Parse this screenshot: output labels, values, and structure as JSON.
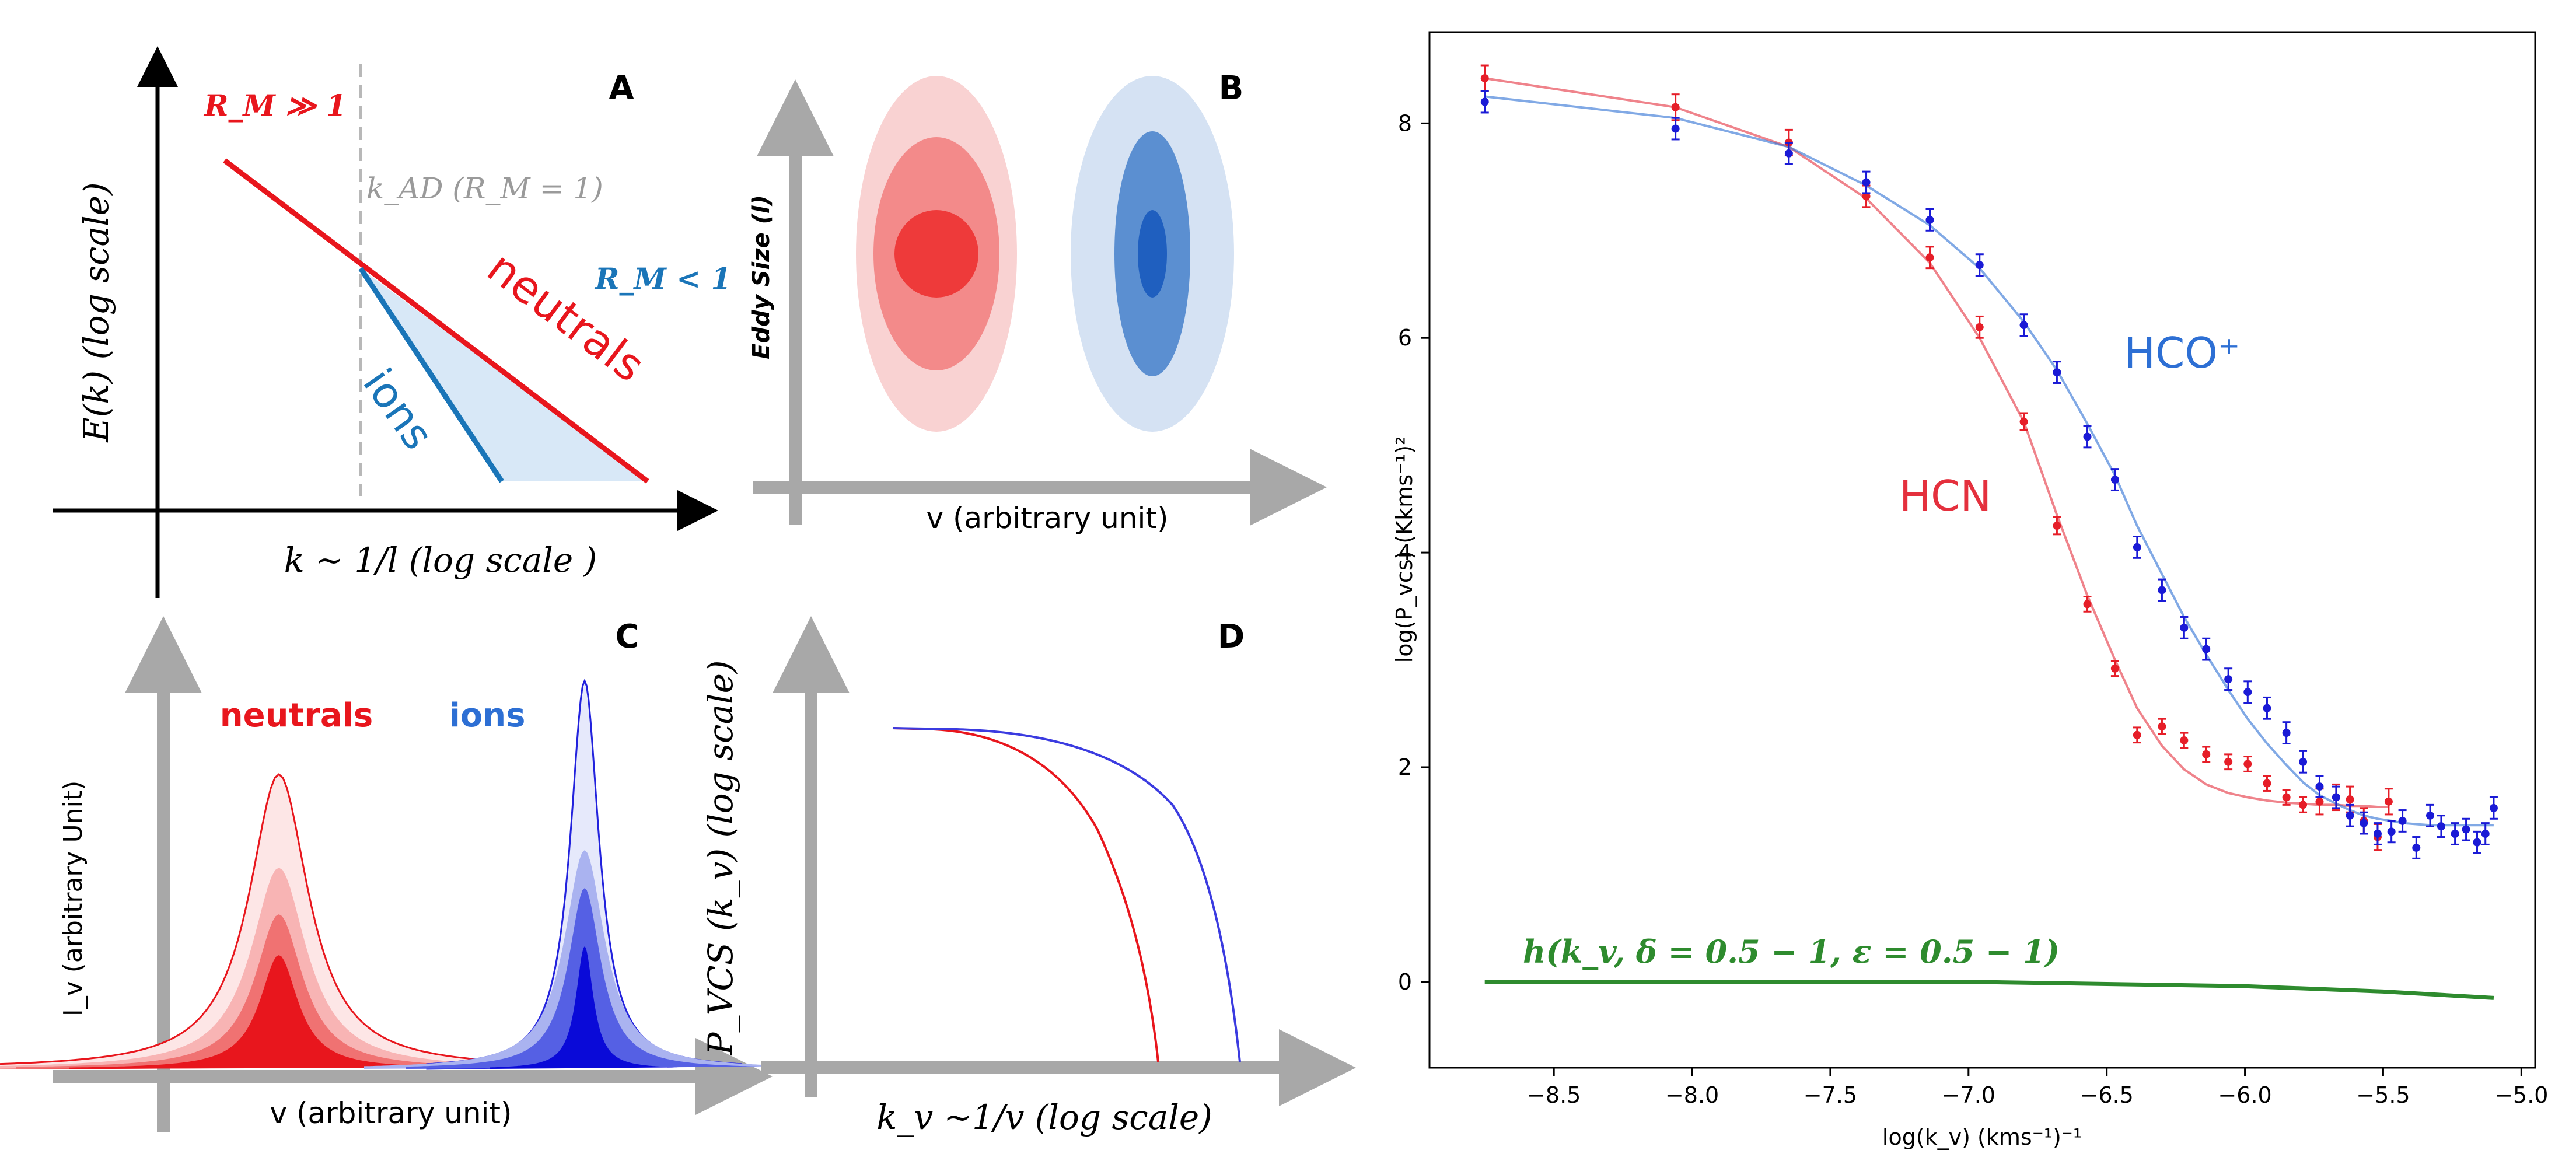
{
  "panels": {
    "A": {
      "label": "A",
      "ylabel": "E(k) (log scale)",
      "xlabel": "k ~ 1/l (log scale )",
      "rm_large": "R_M ≫ 1",
      "rm_small": "R_M < 1",
      "kad": "k_AD (R_M = 1)",
      "neutrals": "neutrals",
      "ions": "ions"
    },
    "B": {
      "label": "B",
      "ylabel": "Eddy Size (l)",
      "xlabel": "v (arbitrary unit)"
    },
    "C": {
      "label": "C",
      "ylabel": "I_v (arbitrary Unit)",
      "xlabel": "v (arbitrary unit)",
      "neutrals": "neutrals",
      "ions": "ions"
    },
    "D": {
      "label": "D",
      "ylabel": "P_VCS (k_v) (log scale)",
      "xlabel": "k_v ~1/v (log scale)"
    }
  },
  "colors": {
    "neutral": "#e8161d",
    "ion_a": "#1a75b8",
    "ion_c": "#2222dd",
    "gray": "#a8a8a8",
    "hcn": "#e4303d",
    "hco": "#2d6fd4",
    "green": "#2e8b2e",
    "fill_a": "#d8e8f7"
  },
  "chart_data": {
    "type": "scatter",
    "xlabel": "log(k_v)   (kms⁻¹)⁻¹",
    "ylabel": "log(P_vcs)   (Kkms⁻¹)²",
    "xlim": [
      -8.95,
      -4.95
    ],
    "ylim": [
      -0.8,
      8.85
    ],
    "xticks": [
      -8.5,
      -8.0,
      -7.5,
      -7.0,
      -6.5,
      -6.0,
      -5.5,
      -5.0
    ],
    "xtick_labels": [
      "−8.5",
      "−8.0",
      "−7.5",
      "−7.0",
      "−6.5",
      "−6.0",
      "−5.5",
      "−5.0"
    ],
    "yticks": [
      0,
      2,
      4,
      6,
      8
    ],
    "ytick_labels": [
      "0",
      "2",
      "4",
      "6",
      "8"
    ],
    "series": [
      {
        "name": "HCN",
        "label": "HCN",
        "x": [
          -8.75,
          -8.06,
          -7.65,
          -7.37,
          -7.14,
          -6.96,
          -6.8,
          -6.68,
          -6.57,
          -6.47,
          -6.39,
          -6.3,
          -6.22,
          -6.14,
          -6.06,
          -5.99,
          -5.92,
          -5.85,
          -5.79,
          -5.73,
          -5.67,
          -5.62,
          -5.57,
          -5.52,
          -5.48
        ],
        "y": [
          8.42,
          8.15,
          7.82,
          7.32,
          6.75,
          6.1,
          5.22,
          4.25,
          3.52,
          2.92,
          2.3,
          2.38,
          2.25,
          2.12,
          2.05,
          2.03,
          1.85,
          1.72,
          1.65,
          1.68,
          1.72,
          1.7,
          1.5,
          1.35,
          1.68
        ],
        "err": [
          0.12,
          0.12,
          0.12,
          0.1,
          0.1,
          0.1,
          0.08,
          0.08,
          0.07,
          0.07,
          0.07,
          0.07,
          0.07,
          0.07,
          0.07,
          0.07,
          0.07,
          0.07,
          0.07,
          0.12,
          0.12,
          0.12,
          0.12,
          0.12,
          0.12
        ]
      },
      {
        "name": "HCO+",
        "label": "HCO⁺",
        "x": [
          -8.75,
          -8.06,
          -7.65,
          -7.37,
          -7.14,
          -6.96,
          -6.8,
          -6.68,
          -6.57,
          -6.47,
          -6.39,
          -6.3,
          -6.22,
          -6.14,
          -6.06,
          -5.99,
          -5.92,
          -5.85,
          -5.79,
          -5.73,
          -5.67,
          -5.62,
          -5.57,
          -5.52,
          -5.47,
          -5.43,
          -5.38,
          -5.33,
          -5.29,
          -5.24,
          -5.2,
          -5.16,
          -5.13,
          -5.1
        ],
        "y": [
          8.2,
          7.95,
          7.72,
          7.45,
          7.1,
          6.68,
          6.12,
          5.68,
          5.08,
          4.68,
          4.05,
          3.65,
          3.3,
          3.1,
          2.82,
          2.7,
          2.55,
          2.32,
          2.05,
          1.82,
          1.72,
          1.55,
          1.48,
          1.38,
          1.4,
          1.5,
          1.25,
          1.55,
          1.45,
          1.38,
          1.42,
          1.3,
          1.38,
          1.62
        ]
      }
    ],
    "fits": [
      {
        "name": "HCN fit",
        "x": [
          -8.75,
          -8.06,
          -7.65,
          -7.37,
          -7.14,
          -6.96,
          -6.8,
          -6.68,
          -6.57,
          -6.47,
          -6.39,
          -6.3,
          -6.22,
          -6.14,
          -6.06,
          -5.99,
          -5.92,
          -5.85,
          -5.79,
          -5.73,
          -5.67,
          -5.62,
          -5.57,
          -5.52,
          -5.48
        ],
        "y": [
          8.42,
          8.15,
          7.78,
          7.3,
          6.7,
          6.0,
          5.22,
          4.35,
          3.6,
          3.0,
          2.55,
          2.2,
          1.98,
          1.84,
          1.76,
          1.72,
          1.69,
          1.67,
          1.66,
          1.65,
          1.65,
          1.64,
          1.64,
          1.63,
          1.63
        ]
      },
      {
        "name": "HCO+ fit",
        "x": [
          -8.75,
          -8.06,
          -7.65,
          -7.37,
          -7.14,
          -6.96,
          -6.8,
          -6.68,
          -6.57,
          -6.47,
          -6.39,
          -6.3,
          -6.22,
          -6.14,
          -6.06,
          -5.99,
          -5.92,
          -5.85,
          -5.79,
          -5.73,
          -5.67,
          -5.62,
          -5.57,
          -5.52,
          -5.47,
          -5.43,
          -5.38,
          -5.33,
          -5.29,
          -5.24,
          -5.2,
          -5.16,
          -5.13,
          -5.1
        ],
        "y": [
          8.25,
          8.05,
          7.78,
          7.42,
          7.05,
          6.65,
          6.15,
          5.7,
          5.2,
          4.72,
          4.25,
          3.8,
          3.4,
          3.05,
          2.72,
          2.45,
          2.22,
          2.02,
          1.86,
          1.74,
          1.66,
          1.6,
          1.55,
          1.52,
          1.5,
          1.48,
          1.47,
          1.46,
          1.46,
          1.46,
          1.46,
          1.46,
          1.46,
          1.46
        ]
      },
      {
        "name": "h",
        "x": [
          -8.75,
          -8.0,
          -7.5,
          -7.0,
          -6.5,
          -6.0,
          -5.5,
          -5.1
        ],
        "y": [
          0.0,
          0.0,
          0.0,
          0.0,
          -0.02,
          -0.04,
          -0.09,
          -0.15
        ]
      }
    ],
    "annotations": {
      "hcn": "HCN",
      "hco": "HCO⁺",
      "h": "h(k_v, δ = 0.5 − 1, ε = 0.5 − 1)"
    }
  }
}
